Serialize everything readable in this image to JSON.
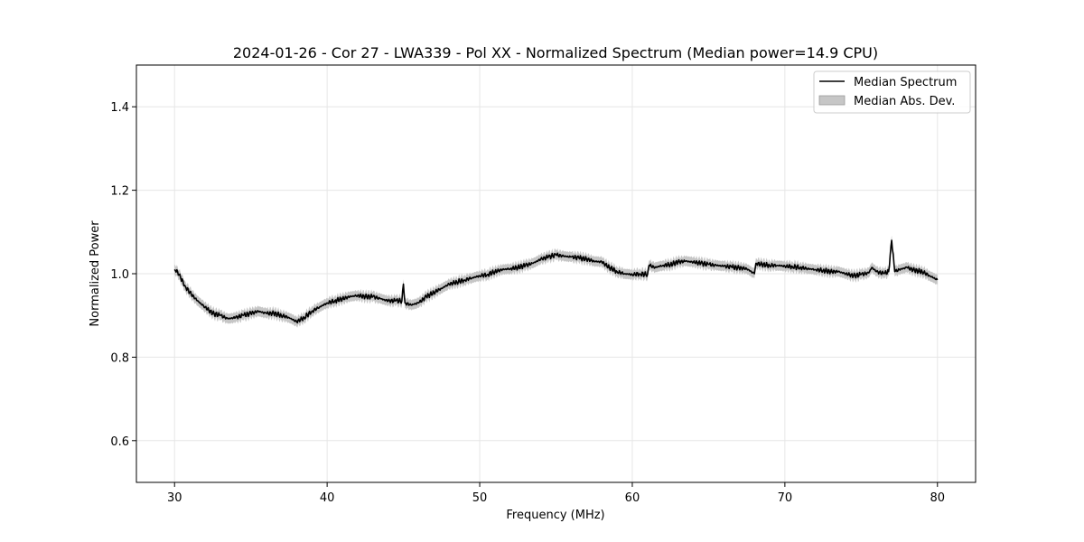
{
  "chart_data": {
    "type": "line",
    "title": "2024-01-26 - Cor 27 - LWA339 - Pol XX - Normalized Spectrum (Median power=14.9 CPU)",
    "xlabel": "Frequency (MHz)",
    "ylabel": "Normalized Power",
    "xlim": [
      27.5,
      82.5
    ],
    "ylim": [
      0.5,
      1.5
    ],
    "xticks": [
      30,
      40,
      50,
      60,
      70,
      80
    ],
    "yticks": [
      0.6,
      0.8,
      1.0,
      1.2,
      1.4
    ],
    "xtick_labels": [
      "30",
      "40",
      "50",
      "60",
      "70",
      "80"
    ],
    "ytick_labels": [
      "0.6",
      "0.8",
      "1.0",
      "1.2",
      "1.4"
    ],
    "grid": true,
    "legend_position": "top-right",
    "mad_halfwidth": 0.012,
    "series": [
      {
        "name": "Median Spectrum",
        "color": "#000000",
        "x": [
          30.0,
          30.2,
          30.4,
          30.7,
          31.0,
          31.5,
          32.0,
          32.5,
          33.0,
          33.5,
          34.0,
          34.5,
          35.0,
          35.5,
          36.0,
          36.5,
          37.0,
          37.5,
          38.0,
          38.5,
          39.0,
          39.5,
          40.0,
          40.5,
          41.0,
          41.5,
          42.0,
          42.5,
          43.0,
          43.5,
          44.0,
          44.5,
          44.9,
          45.0,
          45.1,
          45.5,
          46.0,
          46.5,
          47.0,
          47.5,
          48.0,
          48.5,
          49.0,
          49.5,
          50.0,
          50.5,
          51.0,
          51.5,
          52.0,
          52.5,
          53.0,
          53.5,
          54.0,
          54.5,
          55.0,
          55.5,
          56.0,
          56.5,
          57.0,
          57.5,
          58.0,
          58.5,
          59.0,
          59.5,
          60.0,
          60.5,
          61.0,
          61.1,
          61.5,
          62.0,
          62.5,
          63.0,
          63.5,
          64.0,
          64.5,
          65.0,
          65.5,
          66.0,
          66.5,
          67.0,
          67.5,
          68.0,
          68.1,
          68.5,
          69.0,
          69.5,
          70.0,
          70.5,
          71.0,
          71.5,
          72.0,
          72.5,
          73.0,
          73.5,
          74.0,
          74.5,
          75.0,
          75.5,
          75.7,
          76.0,
          76.5,
          76.8,
          77.0,
          77.2,
          77.5,
          78.0,
          78.5,
          79.0,
          79.5,
          80.0
        ],
        "values": [
          1.01,
          1.005,
          0.99,
          0.97,
          0.955,
          0.935,
          0.92,
          0.905,
          0.9,
          0.892,
          0.895,
          0.9,
          0.905,
          0.91,
          0.905,
          0.905,
          0.9,
          0.895,
          0.885,
          0.895,
          0.91,
          0.92,
          0.93,
          0.935,
          0.94,
          0.945,
          0.948,
          0.945,
          0.945,
          0.94,
          0.935,
          0.935,
          0.935,
          0.975,
          0.93,
          0.925,
          0.93,
          0.945,
          0.955,
          0.965,
          0.975,
          0.98,
          0.985,
          0.99,
          0.995,
          0.998,
          1.005,
          1.01,
          1.012,
          1.015,
          1.02,
          1.025,
          1.035,
          1.04,
          1.045,
          1.042,
          1.04,
          1.038,
          1.035,
          1.03,
          1.028,
          1.015,
          1.005,
          1.0,
          0.998,
          1.0,
          0.998,
          1.02,
          1.015,
          1.02,
          1.022,
          1.028,
          1.03,
          1.028,
          1.025,
          1.022,
          1.02,
          1.018,
          1.016,
          1.014,
          1.012,
          1.0,
          1.025,
          1.022,
          1.02,
          1.02,
          1.018,
          1.017,
          1.015,
          1.012,
          1.01,
          1.008,
          1.005,
          1.005,
          1.0,
          0.995,
          0.998,
          1.002,
          1.015,
          1.005,
          1.0,
          1.005,
          1.08,
          1.005,
          1.01,
          1.015,
          1.008,
          1.005,
          0.995,
          0.985
        ]
      },
      {
        "name": "Median Abs. Dev.",
        "color": "#c8c8c8",
        "fill": true
      }
    ]
  }
}
